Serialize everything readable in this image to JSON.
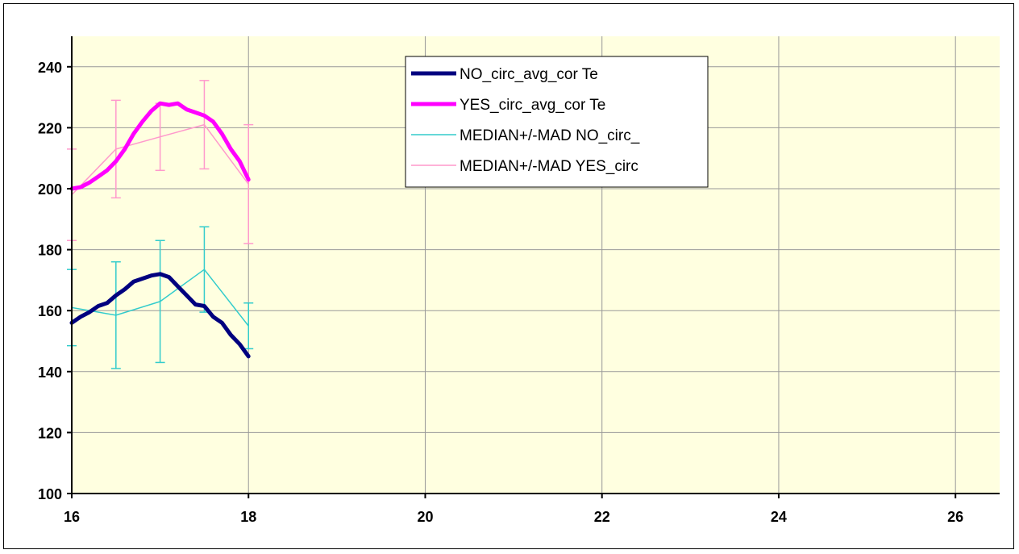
{
  "chart_data": {
    "type": "line",
    "title": "",
    "xlabel": "",
    "ylabel": "",
    "xlim": [
      16,
      26.5
    ],
    "ylim": [
      100,
      250
    ],
    "x_ticks": [
      16,
      18,
      20,
      22,
      24,
      26
    ],
    "y_ticks": [
      100,
      120,
      140,
      160,
      180,
      200,
      220,
      240
    ],
    "grid": true,
    "legend_position": "top-center",
    "colors": {
      "plot_background": "#FFFFE0",
      "grid": "#999999"
    },
    "series": [
      {
        "name": "NO_circ_avg_cor Te",
        "color": "#00007F",
        "style": "thick",
        "x": [
          16.0,
          16.1,
          16.2,
          16.3,
          16.4,
          16.5,
          16.6,
          16.7,
          16.8,
          16.9,
          17.0,
          17.1,
          17.2,
          17.3,
          17.4,
          17.5,
          17.6,
          17.7,
          17.8,
          17.9,
          18.0
        ],
        "y": [
          156,
          158,
          159.5,
          161.5,
          162.5,
          165,
          167,
          169.5,
          170.5,
          171.5,
          172,
          171,
          168,
          165,
          162,
          161.5,
          158,
          156,
          152,
          149,
          145
        ]
      },
      {
        "name": "YES_circ_avg_cor Te",
        "color": "#FF00FF",
        "style": "thick",
        "x": [
          16.0,
          16.1,
          16.2,
          16.3,
          16.4,
          16.5,
          16.6,
          16.7,
          16.8,
          16.9,
          17.0,
          17.1,
          17.2,
          17.3,
          17.4,
          17.5,
          17.6,
          17.7,
          17.8,
          17.9,
          18.0
        ],
        "y": [
          200,
          200.5,
          202,
          204,
          206,
          209,
          213,
          218,
          222,
          225.5,
          228,
          227.5,
          228,
          226,
          225,
          224,
          222,
          218,
          213,
          209,
          203
        ]
      },
      {
        "name": "MEDIAN+/-MAD NO_circ_",
        "color": "#33CCCC",
        "style": "thin",
        "x": [
          16.0,
          16.5,
          17.0,
          17.5,
          18.0
        ],
        "y": [
          161,
          158.5,
          163,
          173.5,
          155
        ],
        "error": [
          12.5,
          17.5,
          20,
          14,
          7.5
        ]
      },
      {
        "name": "MEDIAN+/-MAD YES_circ",
        "color": "#FF99CC",
        "style": "thin",
        "x": [
          16.0,
          16.5,
          17.0,
          17.5,
          18.0
        ],
        "y": [
          198,
          213,
          217,
          221,
          201.5
        ],
        "error": [
          15,
          16,
          11,
          14.5,
          19.5
        ]
      }
    ]
  }
}
